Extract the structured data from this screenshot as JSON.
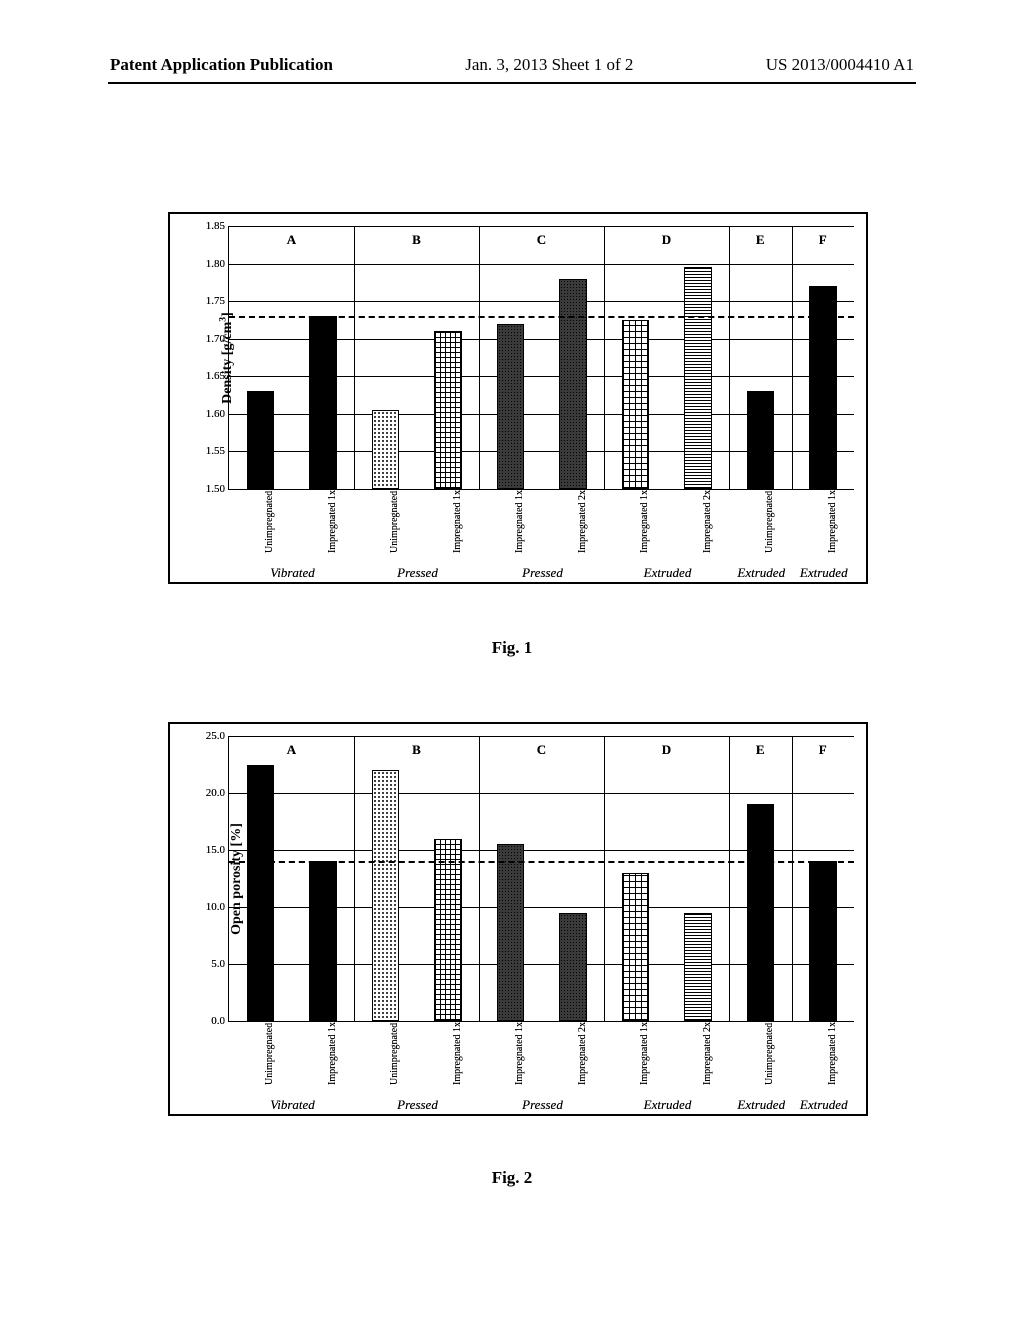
{
  "header": {
    "left": "Patent Application Publication",
    "mid": "Jan. 3, 2013  Sheet 1 of 2",
    "right": "US 2013/0004410 A1"
  },
  "fig1": {
    "caption": "Fig. 1",
    "type": "bar",
    "ylabel_html": "Density [g/cm³]",
    "ymin": 1.5,
    "ymax": 1.85,
    "ytick_step": 0.05,
    "ref_line": 1.73,
    "groups": [
      {
        "label": "A",
        "proc": "Vibrated",
        "bars": [
          {
            "label": "Unimpregnated",
            "value": 1.63,
            "pattern": "solid"
          },
          {
            "label": "Impregnated 1x",
            "value": 1.73,
            "pattern": "solid"
          }
        ]
      },
      {
        "label": "B",
        "proc": "Pressed",
        "bars": [
          {
            "label": "Unimpregnated",
            "value": 1.605,
            "pattern": "dots"
          },
          {
            "label": "Impregnated 1x",
            "value": 1.71,
            "pattern": "cross"
          }
        ]
      },
      {
        "label": "C",
        "proc": "Pressed",
        "bars": [
          {
            "label": "Impregnated 1x",
            "value": 1.72,
            "pattern": "dark"
          },
          {
            "label": "Impregnated 2x",
            "value": 1.78,
            "pattern": "dark"
          }
        ]
      },
      {
        "label": "D",
        "proc": "Extruded",
        "bars": [
          {
            "label": "Impregnated 1x",
            "value": 1.725,
            "pattern": "grid"
          },
          {
            "label": "Impregnated 2x",
            "value": 1.795,
            "pattern": "hstripe"
          }
        ]
      },
      {
        "label": "E",
        "proc": "Extruded",
        "bars": [
          {
            "label": "Unimpregnated",
            "value": 1.63,
            "pattern": "solid"
          }
        ]
      },
      {
        "label": "F",
        "proc": "Extruded",
        "bars": [
          {
            "label": "Impregnated 1x",
            "value": 1.77,
            "pattern": "solid"
          }
        ]
      }
    ]
  },
  "fig2": {
    "caption": "Fig. 2",
    "type": "bar",
    "ylabel": "Open porosity [%]",
    "ymin": 0.0,
    "ymax": 25.0,
    "ytick_step": 5.0,
    "ref_line": 14.0,
    "groups": [
      {
        "label": "A",
        "proc": "Vibrated",
        "bars": [
          {
            "label": "Unimpregnated",
            "value": 22.5,
            "pattern": "solid"
          },
          {
            "label": "Impregnated 1x",
            "value": 14.0,
            "pattern": "solid"
          }
        ]
      },
      {
        "label": "B",
        "proc": "Pressed",
        "bars": [
          {
            "label": "Unimpregnated",
            "value": 22.0,
            "pattern": "dots"
          },
          {
            "label": "Impregnated 1x",
            "value": 16.0,
            "pattern": "cross"
          }
        ]
      },
      {
        "label": "C",
        "proc": "Pressed",
        "bars": [
          {
            "label": "Impregnated 1x",
            "value": 15.5,
            "pattern": "dark"
          },
          {
            "label": "Impregnated 2x",
            "value": 9.5,
            "pattern": "dark"
          }
        ]
      },
      {
        "label": "D",
        "proc": "Extruded",
        "bars": [
          {
            "label": "Impregnated 1x",
            "value": 13.0,
            "pattern": "grid"
          },
          {
            "label": "Impregnated 2x",
            "value": 9.5,
            "pattern": "hstripe"
          }
        ]
      },
      {
        "label": "E",
        "proc": "Extruded",
        "bars": [
          {
            "label": "Unimpregnated",
            "value": 19.0,
            "pattern": "solid"
          }
        ]
      },
      {
        "label": "F",
        "proc": "Extruded",
        "bars": [
          {
            "label": "Impregnated 1x",
            "value": 14.0,
            "pattern": "solid"
          }
        ]
      }
    ]
  }
}
